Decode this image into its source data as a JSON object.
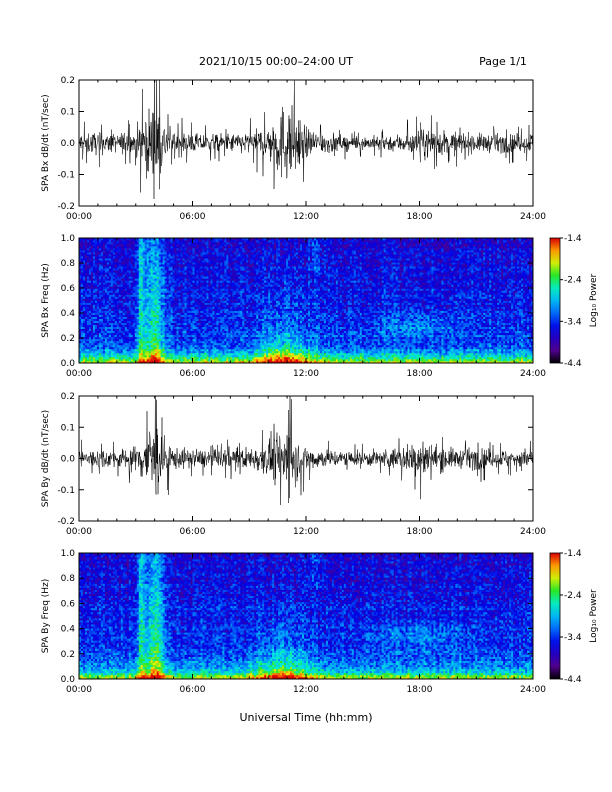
{
  "header": {
    "title": "2021/10/15  00:00–24:00 UT",
    "page": "Page 1/1"
  },
  "chart_data": [
    {
      "type": "line",
      "ylabel": "SPA Bx dB/dt (nT/sec)",
      "xlim": [
        0,
        24
      ],
      "ylim": [
        -0.2,
        0.2
      ],
      "x_ticks": [
        "00:00",
        "06:00",
        "12:00",
        "18:00",
        "24:00"
      ],
      "y_ticks": [
        "-0.2",
        "-0.1",
        "0.0",
        "0.1",
        "0.2"
      ],
      "series": [
        {
          "x": [
            0,
            1,
            2,
            3,
            3.8,
            4.1,
            4.5,
            5,
            6,
            7,
            8,
            9,
            10,
            10.5,
            11,
            11.5,
            12,
            13,
            14,
            15,
            16,
            17,
            18,
            18.5,
            19,
            20,
            21,
            22,
            23,
            24
          ],
          "envelope": [
            0.06,
            0.06,
            0.05,
            0.08,
            0.21,
            0.21,
            0.12,
            0.07,
            0.05,
            0.05,
            0.05,
            0.06,
            0.09,
            0.19,
            0.22,
            0.16,
            0.08,
            0.06,
            0.04,
            0.035,
            0.04,
            0.05,
            0.07,
            0.08,
            0.07,
            0.06,
            0.05,
            0.05,
            0.05,
            0.06
          ]
        }
      ]
    },
    {
      "type": "heatmap",
      "ylabel": "SPA Bx Freq (Hz)",
      "xlim": [
        0,
        24
      ],
      "ylim": [
        0,
        1
      ],
      "x_ticks": [
        "00:00",
        "06:00",
        "12:00",
        "18:00",
        "24:00"
      ],
      "y_ticks": [
        "0.0",
        "0.2",
        "0.4",
        "0.6",
        "0.8",
        "1.0"
      ],
      "colorbar": {
        "label": "Log₁₀ Power",
        "range": [
          -4.4,
          -1.4
        ],
        "ticks": [
          "-1.4",
          "-2.4",
          "-3.4",
          "-4.4"
        ]
      }
    },
    {
      "type": "line",
      "ylabel": "SPA By dB/dt (nT/sec)",
      "xlim": [
        0,
        24
      ],
      "ylim": [
        -0.2,
        0.2
      ],
      "x_ticks": [
        "00:00",
        "06:00",
        "12:00",
        "18:00",
        "24:00"
      ],
      "y_ticks": [
        "-0.2",
        "-0.1",
        "0.0",
        "0.1",
        "0.2"
      ],
      "series": [
        {
          "x": [
            0,
            1,
            2,
            3,
            3.3,
            3.8,
            4.1,
            4.5,
            5,
            6,
            7,
            8,
            9,
            10,
            10.5,
            11,
            11.5,
            12,
            13,
            14,
            15,
            16,
            17,
            17.5,
            18,
            18.5,
            19,
            20,
            21,
            22,
            23,
            24
          ],
          "envelope": [
            0.05,
            0.05,
            0.05,
            0.07,
            0.13,
            0.21,
            0.21,
            0.12,
            0.06,
            0.05,
            0.05,
            0.06,
            0.06,
            0.09,
            0.16,
            0.18,
            0.12,
            0.07,
            0.05,
            0.04,
            0.04,
            0.05,
            0.06,
            0.08,
            0.11,
            0.09,
            0.07,
            0.05,
            0.06,
            0.05,
            0.05,
            0.05
          ]
        }
      ]
    },
    {
      "type": "heatmap",
      "ylabel": "SPA By Freq (Hz)",
      "xlim": [
        0,
        24
      ],
      "ylim": [
        0,
        1
      ],
      "x_ticks": [
        "00:00",
        "06:00",
        "12:00",
        "18:00",
        "24:00"
      ],
      "y_ticks": [
        "0.0",
        "0.2",
        "0.4",
        "0.6",
        "0.8",
        "1.0"
      ],
      "colorbar": {
        "label": "Log₁₀ Power",
        "range": [
          -4.4,
          -1.4
        ],
        "ticks": [
          "-1.4",
          "-2.4",
          "-3.4",
          "-4.4"
        ]
      }
    }
  ],
  "xlabel": "Universal Time (hh:mm)"
}
